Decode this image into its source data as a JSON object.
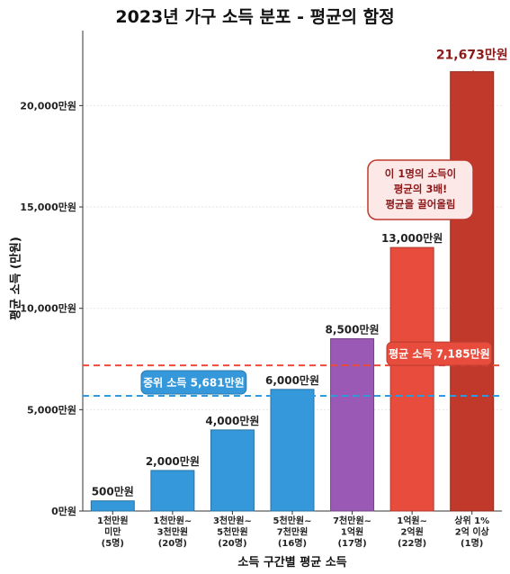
{
  "chart_data": {
    "type": "bar",
    "title": "2023년 가구 소득 분포 - 평균의 함정",
    "xlabel": "소득 구간별 평균 소득",
    "ylabel": "평균 소득 (만원)",
    "ylim": [
      0,
      23700
    ],
    "yticks": [
      0,
      5000,
      10000,
      15000,
      20000
    ],
    "ytick_labels": [
      "0만원",
      "5,000만원",
      "10,000만원",
      "15,000만원",
      "20,000만원"
    ],
    "grid": true,
    "categories": [
      [
        "1천만원",
        "미만",
        "(5명)"
      ],
      [
        "1천만원~",
        "3천만원",
        "(20명)"
      ],
      [
        "3천만원~",
        "5천만원",
        "(20명)"
      ],
      [
        "5천만원~",
        "7천만원",
        "(16명)"
      ],
      [
        "7천만원~",
        "1억원",
        "(17명)"
      ],
      [
        "1억원~",
        "2억원",
        "(22명)"
      ],
      [
        "상위 1%",
        "2억 이상",
        "(1명)"
      ]
    ],
    "values": [
      500,
      2000,
      4000,
      6000,
      8500,
      13000,
      21673
    ],
    "value_labels": [
      "500만원",
      "2,000만원",
      "4,000만원",
      "6,000만원",
      "8,500만원",
      "13,000만원",
      "21,673만원"
    ],
    "bar_colors": [
      "#3498db",
      "#3498db",
      "#3498db",
      "#3498db",
      "#9b59b6",
      "#e74c3c",
      "#c0392b"
    ],
    "reference_lines": [
      {
        "label": "평균 소득 7,185만원",
        "value": 7185,
        "color": "#e74c3c"
      },
      {
        "label": "중위 소득 5,681만원",
        "value": 5681,
        "color": "#3498db"
      }
    ],
    "annotation": {
      "lines": [
        "이 1명의 소득이",
        "평균의 3배!",
        "평균을 끌어올림"
      ],
      "color": "#c0392b",
      "points_to": "21,673만원"
    }
  }
}
